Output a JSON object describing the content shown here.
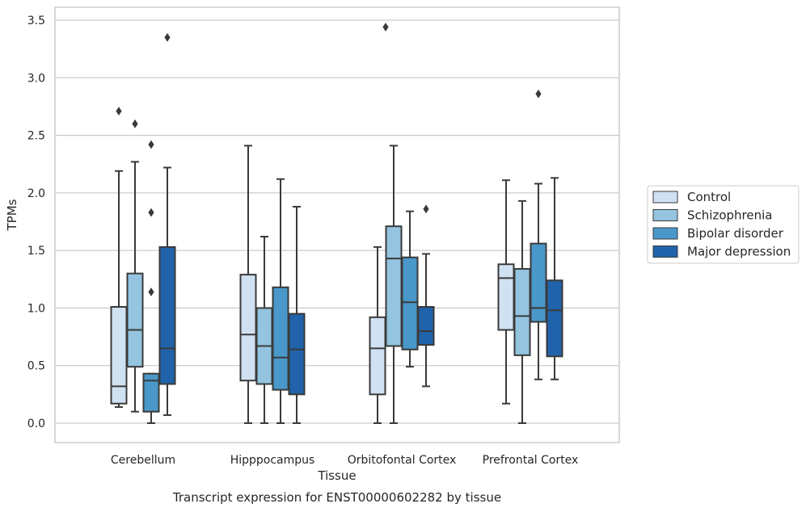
{
  "chart_data": {
    "type": "boxplot",
    "title": "Transcript expression for ENST00000602282 by tissue",
    "xlabel": "Tissue",
    "ylabel": "TPMs",
    "ylim": [
      -0.17,
      3.62
    ],
    "yticks": [
      0.0,
      0.5,
      1.0,
      1.5,
      2.0,
      2.5,
      3.0,
      3.5
    ],
    "ytick_labels": [
      "0.0",
      "0.5",
      "1.0",
      "1.5",
      "2.0",
      "2.5",
      "3.0",
      "3.5"
    ],
    "grid": true,
    "legend_position": "right",
    "categories": [
      "Cerebellum",
      "Hipppocampus",
      "Orbitofontal Cortex",
      "Prefrontal Cortex"
    ],
    "series": [
      {
        "name": "Control",
        "color": "#d0e1f2",
        "boxes": [
          {
            "whisker_low": 0.14,
            "q1": 0.17,
            "median": 0.32,
            "q3": 1.01,
            "whisker_high": 2.19,
            "outliers": [
              2.71
            ]
          },
          {
            "whisker_low": 0.0,
            "q1": 0.37,
            "median": 0.77,
            "q3": 1.29,
            "whisker_high": 2.41,
            "outliers": []
          },
          {
            "whisker_low": 0.0,
            "q1": 0.25,
            "median": 0.65,
            "q3": 0.92,
            "whisker_high": 1.53,
            "outliers": []
          },
          {
            "whisker_low": 0.17,
            "q1": 0.81,
            "median": 1.26,
            "q3": 1.38,
            "whisker_high": 2.11,
            "outliers": []
          }
        ]
      },
      {
        "name": "Schizophrenia",
        "color": "#94c4df",
        "boxes": [
          {
            "whisker_low": 0.1,
            "q1": 0.49,
            "median": 0.81,
            "q3": 1.3,
            "whisker_high": 2.27,
            "outliers": [
              2.6
            ]
          },
          {
            "whisker_low": 0.0,
            "q1": 0.34,
            "median": 0.67,
            "q3": 1.0,
            "whisker_high": 1.62,
            "outliers": []
          },
          {
            "whisker_low": 0.0,
            "q1": 0.67,
            "median": 1.43,
            "q3": 1.71,
            "whisker_high": 2.41,
            "outliers": []
          },
          {
            "whisker_low": 0.0,
            "q1": 0.59,
            "median": 0.93,
            "q3": 1.34,
            "whisker_high": 1.93,
            "outliers": []
          }
        ]
      },
      {
        "name": "Bipolar disorder",
        "color": "#4a98c9",
        "boxes": [
          {
            "whisker_low": 0.0,
            "q1": 0.1,
            "median": 0.37,
            "q3": 0.43,
            "whisker_high": 0.43,
            "outliers": [
              2.42,
              1.83,
              1.14
            ]
          },
          {
            "whisker_low": 0.0,
            "q1": 0.29,
            "median": 0.57,
            "q3": 1.18,
            "whisker_high": 2.12,
            "outliers": []
          },
          {
            "whisker_low": 0.49,
            "q1": 0.64,
            "median": 1.05,
            "q3": 1.44,
            "whisker_high": 1.84,
            "outliers": []
          },
          {
            "whisker_low": 0.38,
            "q1": 0.88,
            "median": 1.0,
            "q3": 1.56,
            "whisker_high": 2.08,
            "outliers": [
              2.86
            ]
          }
        ]
      },
      {
        "name": "Major depression",
        "color": "#2163aa",
        "boxes": [
          {
            "whisker_low": 0.07,
            "q1": 0.34,
            "median": 0.65,
            "q3": 1.53,
            "whisker_high": 2.22,
            "outliers": [
              3.35
            ]
          },
          {
            "whisker_low": 0.0,
            "q1": 0.25,
            "median": 0.64,
            "q3": 0.95,
            "whisker_high": 1.88,
            "outliers": []
          },
          {
            "whisker_low": 0.32,
            "q1": 0.68,
            "median": 0.8,
            "q3": 1.01,
            "whisker_high": 1.47,
            "outliers": [
              1.86
            ]
          },
          {
            "whisker_low": 0.38,
            "q1": 0.58,
            "median": 0.98,
            "q3": 1.24,
            "whisker_high": 2.13,
            "outliers": []
          }
        ]
      }
    ],
    "extra_outliers": [
      {
        "category_index": 2,
        "series_index": 0,
        "value": 3.44
      }
    ],
    "colors": {
      "edge": "#3a3a3a",
      "grid": "#cccccc",
      "frame": "#cccccc"
    }
  }
}
